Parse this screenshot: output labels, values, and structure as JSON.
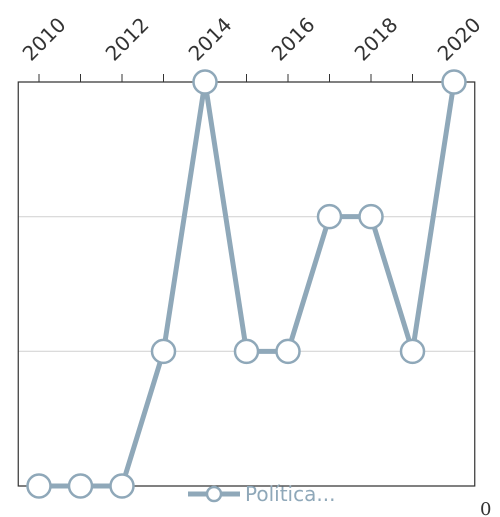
{
  "chart_data": {
    "type": "line",
    "x": [
      2010,
      2011,
      2012,
      2013,
      2014,
      2015,
      2016,
      2017,
      2018,
      2019,
      2020
    ],
    "series": [
      {
        "name": "Política...",
        "color": "#8fa8b9",
        "values": [
          0,
          0,
          0,
          1,
          3,
          1,
          1,
          2,
          2,
          1,
          3
        ]
      }
    ],
    "xlim": [
      2009.5,
      2020.5
    ],
    "xticks": [
      2010,
      2012,
      2014,
      2016,
      2018,
      2020
    ],
    "minor_xticks": [
      2011,
      2013,
      2015,
      2017,
      2019
    ],
    "ylim": [
      0,
      3
    ],
    "yticks": [
      0,
      1,
      2,
      3
    ],
    "grid": true,
    "legend": "bottom",
    "annotation": "0"
  }
}
